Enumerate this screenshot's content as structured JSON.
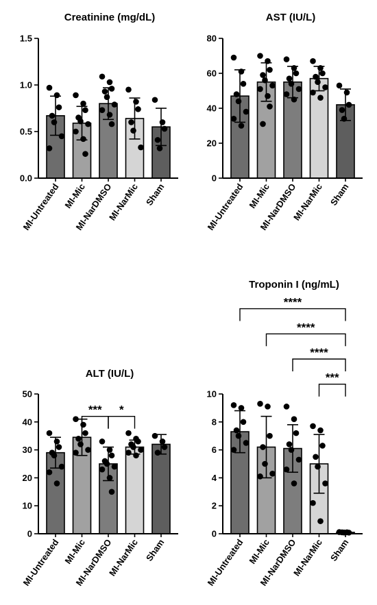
{
  "chart_data": [
    {
      "type": "bar",
      "title": "Creatinine (mg/dL)",
      "categories": [
        "MI-Untreated",
        "MI-Mic",
        "MI-NarDMSO",
        "MI-NarMic",
        "Sham"
      ],
      "values": [
        0.67,
        0.59,
        0.8,
        0.64,
        0.55
      ],
      "error": [
        0.21,
        0.18,
        0.17,
        0.22,
        0.2
      ],
      "points": [
        [
          0.97,
          0.89,
          0.76,
          0.67,
          0.6,
          0.45,
          0.32
        ],
        [
          0.89,
          0.8,
          0.73,
          0.65,
          0.61,
          0.58,
          0.5,
          0.42,
          0.26
        ],
        [
          1.09,
          1.03,
          0.96,
          0.93,
          0.87,
          0.79,
          0.73,
          0.68,
          0.58
        ],
        [
          0.95,
          0.82,
          0.74,
          0.6,
          0.51,
          0.33
        ],
        [
          0.84,
          0.6,
          0.53,
          0.41,
          0.32
        ]
      ],
      "bar_colors": [
        "#6d6d6d",
        "#a1a1a1",
        "#7d7d7d",
        "#d5d5d5",
        "#5e5e5e"
      ],
      "ylim": [
        0,
        1.5
      ],
      "yticks": [
        "0.0",
        "0.5",
        "1.0",
        "1.5"
      ],
      "ytick_values": [
        0,
        0.5,
        1.0,
        1.5
      ],
      "significance": []
    },
    {
      "type": "bar",
      "title": "AST (IU/L)",
      "categories": [
        "MI-Untreated",
        "MI-Mic",
        "MI-NarDMSO",
        "MI-NarMic",
        "Sham"
      ],
      "values": [
        47,
        55,
        55,
        57,
        42
      ],
      "error": [
        15,
        11,
        9,
        7,
        9
      ],
      "points": [
        [
          69,
          61,
          54,
          48,
          44,
          38,
          34,
          30
        ],
        [
          70,
          67,
          62,
          59,
          56,
          53,
          51,
          47,
          41,
          31
        ],
        [
          68,
          63,
          60,
          57,
          54,
          51,
          48,
          45
        ],
        [
          67,
          63,
          60,
          58,
          55,
          52,
          49,
          46
        ],
        [
          53,
          49,
          42,
          39,
          34
        ]
      ],
      "bar_colors": [
        "#6d6d6d",
        "#a1a1a1",
        "#7d7d7d",
        "#d5d5d5",
        "#5e5e5e"
      ],
      "ylim": [
        0,
        80
      ],
      "yticks": [
        "0",
        "20",
        "40",
        "60",
        "80"
      ],
      "ytick_values": [
        0,
        20,
        40,
        60,
        80
      ],
      "significance": []
    },
    {
      "type": "bar",
      "title": "ALT (IU/L)",
      "categories": [
        "MI-Untreated",
        "MI-Mic",
        "MI-NarDMSO",
        "MI-NarMic",
        "Sham"
      ],
      "values": [
        29,
        34.5,
        25,
        31,
        32
      ],
      "error": [
        5.5,
        6.5,
        6,
        2.5,
        3.5
      ],
      "points": [
        [
          36,
          33,
          31,
          29,
          28,
          24,
          22,
          18
        ],
        [
          41,
          39,
          36,
          34,
          32,
          30,
          29
        ],
        [
          33,
          30,
          28,
          26,
          25,
          24,
          23,
          20,
          15
        ],
        [
          36,
          34,
          33,
          32,
          31,
          30,
          29,
          28
        ],
        [
          35,
          33,
          31,
          29
        ]
      ],
      "bar_colors": [
        "#6d6d6d",
        "#a1a1a1",
        "#7d7d7d",
        "#d5d5d5",
        "#5e5e5e"
      ],
      "ylim": [
        0,
        50
      ],
      "yticks": [
        "0",
        "10",
        "20",
        "30",
        "40",
        "50"
      ],
      "ytick_values": [
        0,
        10,
        20,
        30,
        40,
        50
      ],
      "significance": [
        {
          "from": 1,
          "to": 2,
          "y": 42,
          "label": "***"
        },
        {
          "from": 2,
          "to": 3,
          "y": 42,
          "label": "*"
        }
      ]
    },
    {
      "type": "bar",
      "title": "Troponin I (ng/mL)",
      "categories": [
        "MI-Untreated",
        "MI-Mic",
        "MI-NarDMSO",
        "MI-NarMic",
        "Sham"
      ],
      "values": [
        7.3,
        6.2,
        6.1,
        5.0,
        0.1
      ],
      "error": [
        1.5,
        2.2,
        1.7,
        2.1,
        0.05
      ],
      "points": [
        [
          9.2,
          9.0,
          8.0,
          7.4,
          7.0,
          6.5,
          6.0
        ],
        [
          9.3,
          9.1,
          7.0,
          6.2,
          5.0,
          4.3,
          4.1
        ],
        [
          9.1,
          8.2,
          7.2,
          6.4,
          6.0,
          5.3,
          4.6,
          3.6
        ],
        [
          7.7,
          7.4,
          6.3,
          5.5,
          4.8,
          3.6,
          2.2,
          0.9
        ],
        [
          0.12,
          0.1,
          0.08,
          0.1,
          0.09
        ]
      ],
      "bar_colors": [
        "#6d6d6d",
        "#a1a1a1",
        "#7d7d7d",
        "#d5d5d5",
        "#5e5e5e"
      ],
      "ylim": [
        0,
        10
      ],
      "yticks": [
        "0",
        "2",
        "4",
        "6",
        "8",
        "10"
      ],
      "ytick_values": [
        0,
        2,
        4,
        6,
        8,
        10
      ],
      "significance": [
        {
          "from": 0,
          "to": 4,
          "y": 16.1,
          "label": "****"
        },
        {
          "from": 1,
          "to": 4,
          "y": 14.3,
          "label": "****"
        },
        {
          "from": 2,
          "to": 4,
          "y": 12.5,
          "label": "****"
        },
        {
          "from": 3,
          "to": 4,
          "y": 10.7,
          "label": "***"
        }
      ]
    }
  ]
}
